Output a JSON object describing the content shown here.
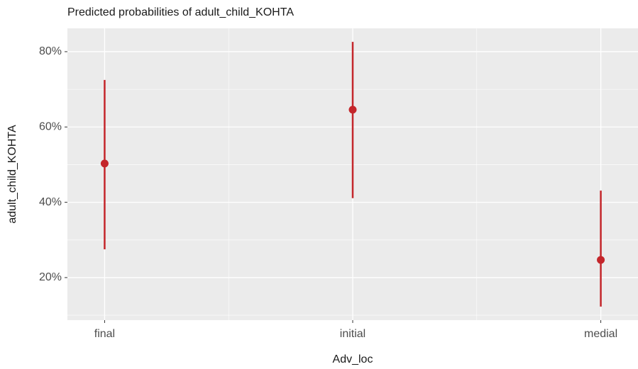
{
  "chart_data": {
    "type": "pointrange",
    "title": "Predicted probabilities of adult_child_KOHTA",
    "x_label": "Adv_loc",
    "y_label": "adult_child_KOHTA",
    "categories": [
      "final",
      "initial",
      "medial"
    ],
    "values": [
      50.3,
      64.6,
      24.7
    ],
    "lower": [
      27.5,
      41.1,
      12.3
    ],
    "upper": [
      72.5,
      82.6,
      43.1
    ],
    "color": "#c4262b",
    "ylim": [
      8.7,
      86.2
    ],
    "yticks": [
      {
        "value": 20,
        "label": "20%"
      },
      {
        "value": 40,
        "label": "40%"
      },
      {
        "value": 60,
        "label": "60%"
      },
      {
        "value": 80,
        "label": "80%"
      }
    ],
    "y_minor_ticks": [
      10,
      30,
      50,
      70
    ],
    "grid": true
  }
}
